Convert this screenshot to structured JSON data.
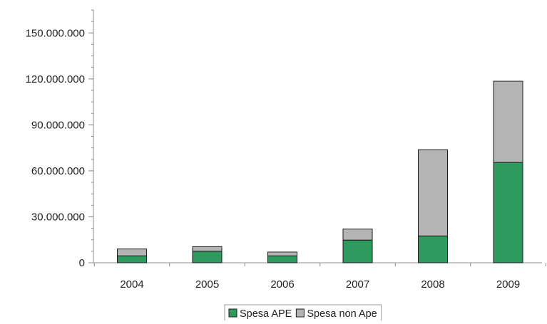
{
  "chart_data": {
    "type": "bar",
    "stacked": true,
    "categories": [
      "2004",
      "2005",
      "2006",
      "2007",
      "2008",
      "2009"
    ],
    "series": [
      {
        "name": "Spesa APE",
        "color": "#2e9a5e",
        "values": [
          4500000,
          7500000,
          4500000,
          14800000,
          17500000,
          65500000
        ]
      },
      {
        "name": "Spesa non Ape",
        "color": "#b4b4b4",
        "values": [
          4500000,
          3000000,
          2500000,
          7200000,
          56300000,
          53000000
        ]
      }
    ],
    "ylim": [
      0,
      165000000
    ],
    "yticks": [
      0,
      30000000,
      60000000,
      90000000,
      120000000,
      150000000
    ],
    "ytick_labels": [
      "0",
      "30.000.000",
      "60.000.000",
      "90.000.000",
      "120.000.000",
      "150.000.000"
    ],
    "grid": false,
    "legend_position": "bottom"
  }
}
